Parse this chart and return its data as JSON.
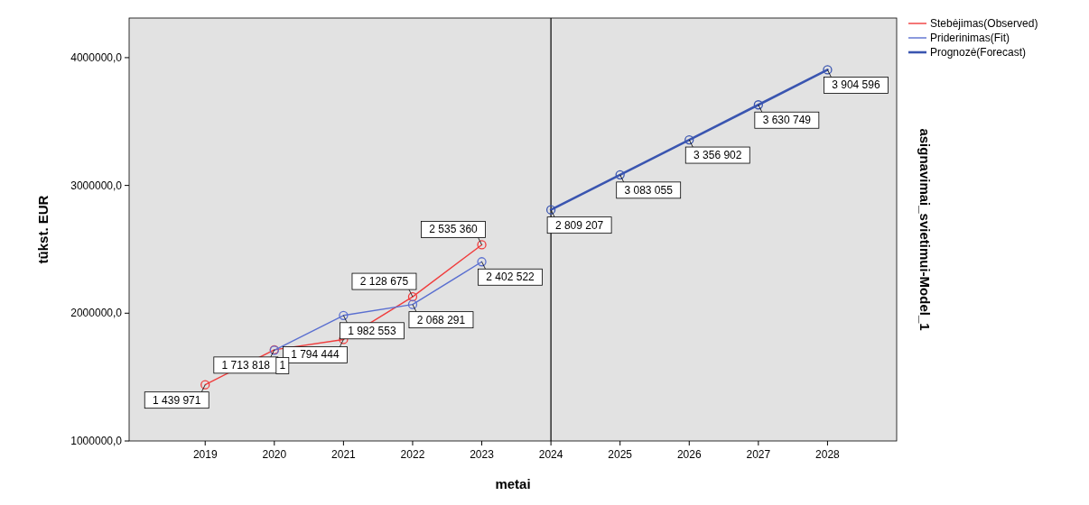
{
  "chart_data": {
    "type": "line",
    "title": "asignavimai_svietimui-Model_1",
    "xlabel": "metai",
    "ylabel": "tūkst. EUR",
    "xlim": [
      2017.9,
      2029
    ],
    "xticks": [
      2019,
      2020,
      2021,
      2022,
      2023,
      2024,
      2025,
      2026,
      2027,
      2028
    ],
    "ylim": [
      1000000,
      4310000
    ],
    "yticks": [
      {
        "value": 1000000,
        "label": "1000000,0"
      },
      {
        "value": 2000000,
        "label": "2000000,0"
      },
      {
        "value": 3000000,
        "label": "3000000,0"
      },
      {
        "value": 4000000,
        "label": "4000000,0"
      }
    ],
    "series": [
      {
        "name": "Stebėjimas(Observed)",
        "color": "#f03c3c",
        "x": [
          2019,
          2020,
          2021,
          2022,
          2023
        ],
        "values": [
          1439971,
          1713818,
          1794444,
          2128675,
          2535360
        ],
        "value_labels": [
          "1 439 971",
          "1 713 818",
          "1 794 444",
          "2 128 675",
          "2 535 360"
        ]
      },
      {
        "name": "Priderinimas(Fit)",
        "color": "#5a6fd0",
        "x": [
          2020,
          2021,
          2022,
          2023
        ],
        "values": [
          1710000,
          1982553,
          2068291,
          2402522
        ],
        "value_labels": [
          null,
          "1 982 553",
          "2 068 291",
          "2 402 522"
        ]
      },
      {
        "name": "Prognozė(Forecast)",
        "color": "#3a55b0",
        "x": [
          2024,
          2025,
          2026,
          2027,
          2028
        ],
        "values": [
          2809207,
          3083055,
          3356902,
          3630749,
          3904596
        ],
        "value_labels": [
          "2 809 207",
          "3 083 055",
          "3 356 902",
          "3 630 749",
          "3 904 596"
        ]
      }
    ],
    "ref_lines": [
      {
        "axis": "x",
        "value": 2024,
        "color": "#000000"
      }
    ],
    "annotations": [
      "1"
    ],
    "marker": "circle",
    "line_style": "solid",
    "grid": false,
    "legend": "top right"
  }
}
